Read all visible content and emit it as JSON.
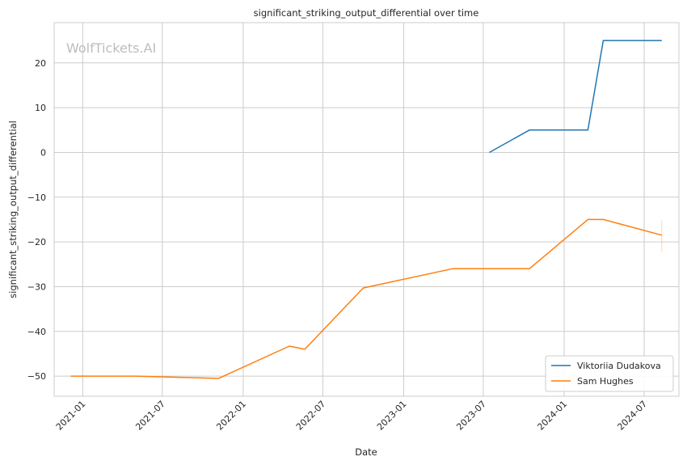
{
  "chart_data": {
    "type": "line",
    "title": "significant_striking_output_differential over time",
    "xlabel": "Date",
    "ylabel": "significant_striking_output_differential",
    "watermark": "WolfTickets.AI",
    "x_ticks": [
      "2021-01",
      "2021-07",
      "2022-01",
      "2022-07",
      "2023-01",
      "2023-07",
      "2024-01",
      "2024-07"
    ],
    "y_ticks": [
      20,
      10,
      0,
      -10,
      -20,
      -30,
      -40,
      -50
    ],
    "y_tick_labels": [
      "20",
      "10",
      "0",
      "−10",
      "−20",
      "−30",
      "−40",
      "−50"
    ],
    "ylim": [
      -54.5,
      29
    ],
    "xlim": [
      "2020-10-28",
      "2024-09-18"
    ],
    "grid": true,
    "legend_position": "lower right",
    "series": [
      {
        "name": "Viktoriia Dudakova",
        "color": "#1f77b4",
        "x": [
          "2023-07-15",
          "2023-10-14",
          "2024-02-24",
          "2024-03-30",
          "2024-08-10"
        ],
        "y": [
          0,
          5,
          5,
          25,
          25
        ]
      },
      {
        "name": "Sam Hughes",
        "color": "#ff7f0e",
        "x": [
          "2020-12-05",
          "2021-05-01",
          "2021-11-06",
          "2022-04-16",
          "2022-05-21",
          "2022-10-01",
          "2023-04-22",
          "2023-10-14",
          "2024-02-24",
          "2024-03-30",
          "2024-08-10"
        ],
        "y": [
          -50,
          -50,
          -50.5,
          -43.3,
          -44,
          -30.3,
          -26,
          -26,
          -15,
          -15,
          -18.5
        ]
      }
    ],
    "error_band": {
      "series": "Sam Hughes",
      "x": "2024-08-10",
      "y_low": -22.3,
      "y_high": -15.2
    }
  }
}
